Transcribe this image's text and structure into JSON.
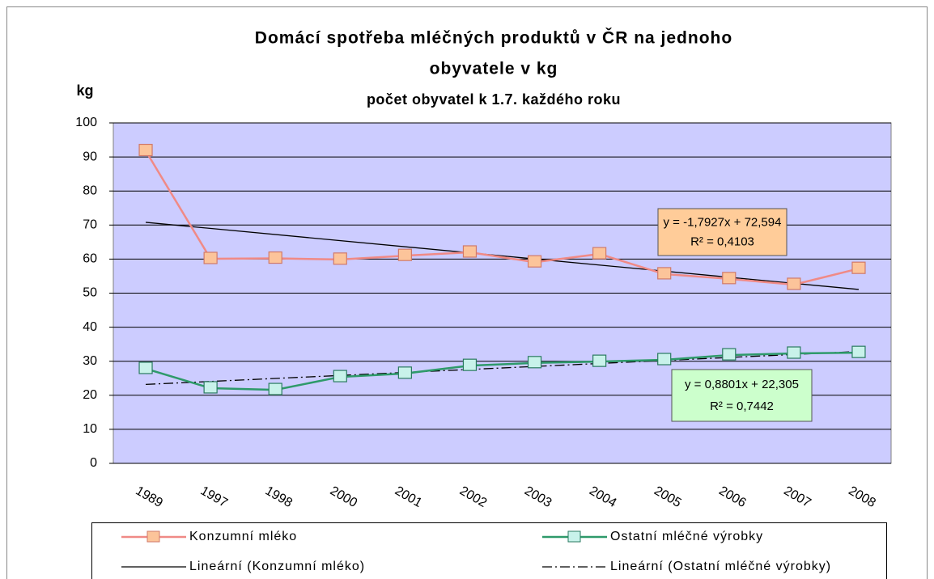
{
  "chart_data": {
    "type": "line",
    "title_lines": [
      "Domácí spotřeba mléčných produktů v ČR na jednoho",
      "obyvatele v kg"
    ],
    "subtitle": "počet obyvatel k 1.7. každého roku",
    "y_label": "kg",
    "categories": [
      "1989",
      "1997",
      "1998",
      "2000",
      "2001",
      "2002",
      "2003",
      "2004",
      "2005",
      "2006",
      "2007",
      "2008"
    ],
    "series": [
      {
        "name": "Konzumní mléko",
        "color": "#f08a86",
        "marker_fill": "#fcc49a",
        "marker_stroke": "#d07a6a",
        "values": [
          91.8,
          60.1,
          60.2,
          59.9,
          61,
          62,
          59.1,
          61.5,
          55.6,
          54.2,
          52.5,
          57.2
        ]
      },
      {
        "name": "Ostatní mléčné výrobky",
        "color": "#2e9a6a",
        "marker_fill": "#c8f2ea",
        "marker_stroke": "#2a7a60",
        "values": [
          27.8,
          22.1,
          21.6,
          25.4,
          26.4,
          28.7,
          29.5,
          29.9,
          30.4,
          31.8,
          32.3,
          32.5
        ]
      }
    ],
    "trendlines": [
      {
        "name": "Lineární (Konzumní mléko)",
        "slope": -1.7927,
        "intercept": 72.594,
        "color": "#000000",
        "dash": "none",
        "equation": "y = -1,7927x + 72,594",
        "r2": "R² = 0,4103",
        "box_color": "#ffcc99"
      },
      {
        "name": "Lineární (Ostatní mléčné výrobky)",
        "slope": 0.8801,
        "intercept": 22.305,
        "color": "#000000",
        "dash": "12 4 2 4",
        "equation": "y = 0,8801x + 22,305",
        "r2": "R² = 0,7442",
        "box_color": "#ccffcc"
      }
    ],
    "ylim": [
      0,
      100
    ],
    "yticks": [
      0,
      10,
      20,
      30,
      40,
      50,
      60,
      70,
      80,
      90,
      100
    ],
    "grid": true
  }
}
